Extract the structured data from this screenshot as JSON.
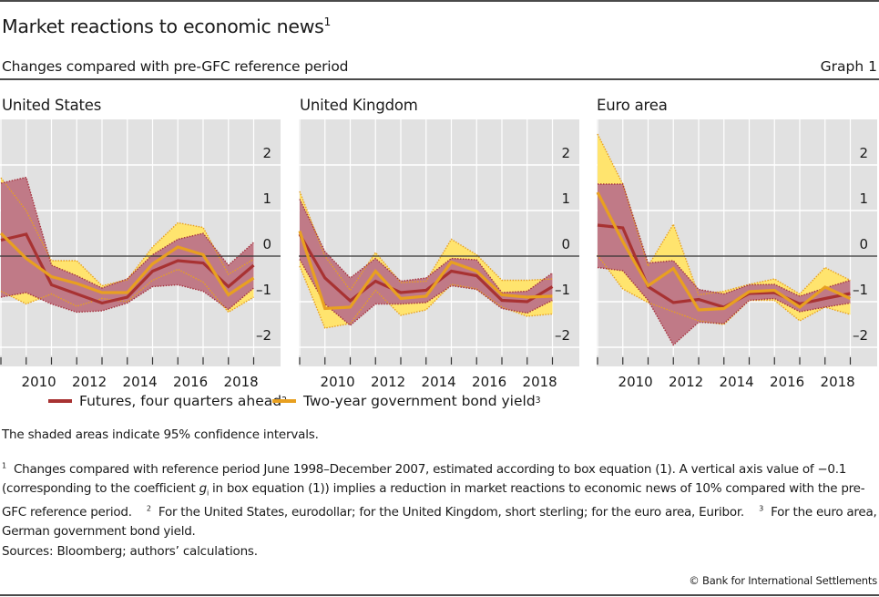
{
  "header": {
    "title": "Market reactions to economic news",
    "title_footnote": "1",
    "subtitle": "Changes compared with pre-GFC reference period",
    "graph_number": "Graph 1"
  },
  "legend": {
    "futures_label": "Futures, four quarters ahead",
    "futures_footnote": "2",
    "bond_label": "Two-year government bond yield",
    "bond_footnote": "3"
  },
  "colors": {
    "plot_background": "#e1e1e1",
    "gridline": "#ffffff",
    "zero_line": "#333333",
    "futures_line": "#a83232",
    "futures_band": "#c07a87",
    "futures_band_edge": "#a6343f",
    "bond_line": "#e8a020",
    "bond_band": "#ffe46e",
    "bond_band_edge": "#e8a020"
  },
  "notes": {
    "shaded": "The shaded areas indicate 95% confidence intervals.",
    "footnote1_mark": "1",
    "footnote1_a": "Changes compared with reference period June 1998–December 2007, estimated according to box equation (1). A vertical axis value of −0.1 (corresponding to the coefficient ",
    "footnote1_var": "g",
    "footnote1_sub": "i",
    "footnote1_b": " in box equation (1)) implies a reduction in market reactions to economic news of 10% compared with the pre-GFC reference period.",
    "footnote2_mark": "2",
    "footnote2": "For the United States, eurodollar; for the United Kingdom, short sterling; for the euro area, Euribor.",
    "footnote3_mark": "3",
    "footnote3": "For the euro area, German government bond yield.",
    "sources": "Sources: Bloomberg; authors’ calculations.",
    "copyright": "© Bank for International Settlements"
  },
  "chart_data": [
    {
      "type": "line",
      "title": "United States",
      "x": [
        2009,
        2010,
        2011,
        2012,
        2013,
        2014,
        2015,
        2016,
        2017,
        2018,
        2019
      ],
      "xtick_labels": [
        "2010",
        "2012",
        "2014",
        "2016",
        "2018"
      ],
      "ylim": [
        -2.2,
        2.3
      ],
      "yticks": [
        2,
        1,
        0,
        -1,
        -2
      ],
      "ytick_labels": [
        "2",
        "1",
        "0",
        "–1",
        "–2"
      ],
      "xlabel": "",
      "ylabel": "",
      "grid": true,
      "series": [
        {
          "name": "Futures, four quarters ahead",
          "values": [
            0.35,
            0.48,
            -0.63,
            -0.83,
            -1.03,
            -0.9,
            -0.33,
            -0.1,
            -0.15,
            -0.67,
            -0.2
          ],
          "ci_upper": [
            1.6,
            1.73,
            -0.2,
            -0.43,
            -0.7,
            -0.5,
            0.03,
            0.37,
            0.5,
            -0.2,
            0.3
          ],
          "ci_lower": [
            -0.9,
            -0.8,
            -1.05,
            -1.23,
            -1.2,
            -1.03,
            -0.67,
            -0.63,
            -0.77,
            -1.17,
            -0.7
          ]
        },
        {
          "name": "Two-year government bond yield",
          "values": [
            0.5,
            -0.05,
            -0.45,
            -0.6,
            -0.8,
            -0.8,
            -0.17,
            0.2,
            0.03,
            -0.85,
            -0.48
          ],
          "ci_upper": [
            1.72,
            1.0,
            -0.1,
            -0.1,
            -0.65,
            -0.52,
            0.2,
            0.73,
            0.63,
            -0.4,
            -0.07
          ],
          "ci_lower": [
            -0.77,
            -1.05,
            -0.83,
            -1.1,
            -0.93,
            -1.0,
            -0.53,
            -0.29,
            -0.57,
            -1.23,
            -0.9
          ]
        }
      ]
    },
    {
      "type": "line",
      "title": "United Kingdom",
      "x": [
        2009,
        2010,
        2011,
        2012,
        2013,
        2014,
        2015,
        2016,
        2017,
        2018,
        2019
      ],
      "xtick_labels": [
        "2010",
        "2012",
        "2014",
        "2016",
        "2018"
      ],
      "ylim": [
        -2.2,
        2.3
      ],
      "yticks": [
        2,
        1,
        0,
        -1,
        -2
      ],
      "ytick_labels": [
        "2",
        "1",
        "0",
        "–1",
        "–2"
      ],
      "xlabel": "",
      "ylabel": "",
      "grid": true,
      "series": [
        {
          "name": "Futures, four quarters ahead",
          "values": [
            0.48,
            -0.48,
            -0.98,
            -0.55,
            -0.8,
            -0.75,
            -0.33,
            -0.43,
            -0.97,
            -1.0,
            -0.67
          ],
          "ci_upper": [
            1.25,
            0.1,
            -0.48,
            -0.05,
            -0.55,
            -0.48,
            -0.05,
            -0.08,
            -0.8,
            -0.77,
            -0.37
          ],
          "ci_lower": [
            -0.07,
            -1.05,
            -1.52,
            -1.05,
            -1.05,
            -1.02,
            -0.65,
            -0.73,
            -1.15,
            -1.25,
            -0.97
          ]
        },
        {
          "name": "Two-year government bond yield",
          "values": [
            0.55,
            -1.15,
            -1.12,
            -0.33,
            -0.93,
            -0.88,
            -0.13,
            -0.33,
            -0.85,
            -0.9,
            -0.88
          ],
          "ci_upper": [
            1.42,
            0.0,
            -0.75,
            0.08,
            -0.58,
            -0.55,
            0.37,
            0.03,
            -0.53,
            -0.53,
            -0.5
          ],
          "ci_lower": [
            -0.22,
            -1.58,
            -1.48,
            -0.75,
            -1.3,
            -1.18,
            -0.62,
            -0.72,
            -1.12,
            -1.32,
            -1.27
          ]
        }
      ]
    },
    {
      "type": "line",
      "title": "Euro area",
      "x": [
        2009,
        2010,
        2011,
        2012,
        2013,
        2014,
        2015,
        2016,
        2017,
        2018,
        2019
      ],
      "xtick_labels": [
        "2010",
        "2012",
        "2014",
        "2016",
        "2018"
      ],
      "ylim": [
        -2.2,
        2.3
      ],
      "yticks": [
        2,
        1,
        0,
        -1,
        -2
      ],
      "ytick_labels": [
        "2",
        "1",
        "0",
        "–1",
        "–2"
      ],
      "xlabel": "",
      "ylabel": "",
      "grid": true,
      "series": [
        {
          "name": "Futures, four quarters ahead",
          "values": [
            0.68,
            0.62,
            -0.67,
            -1.02,
            -0.95,
            -1.12,
            -0.82,
            -0.8,
            -1.05,
            -0.93,
            -0.82
          ],
          "ci_upper": [
            1.58,
            1.58,
            -0.15,
            -0.1,
            -0.73,
            -0.83,
            -0.63,
            -0.62,
            -0.88,
            -0.7,
            -0.53
          ],
          "ci_lower": [
            -0.25,
            -0.32,
            -0.97,
            -1.95,
            -1.45,
            -1.48,
            -0.97,
            -0.93,
            -1.22,
            -1.12,
            -1.03
          ]
        },
        {
          "name": "Two-year government bond yield",
          "values": [
            1.4,
            0.32,
            -0.65,
            -0.27,
            -1.18,
            -1.15,
            -0.78,
            -0.75,
            -1.12,
            -0.68,
            -0.93
          ],
          "ci_upper": [
            2.68,
            1.58,
            -0.22,
            0.7,
            -0.85,
            -0.77,
            -0.62,
            -0.5,
            -0.83,
            -0.25,
            -0.53
          ],
          "ci_lower": [
            0.02,
            -0.72,
            -1.02,
            -1.22,
            -1.42,
            -1.5,
            -0.97,
            -0.97,
            -1.42,
            -1.12,
            -1.28
          ]
        }
      ]
    }
  ]
}
